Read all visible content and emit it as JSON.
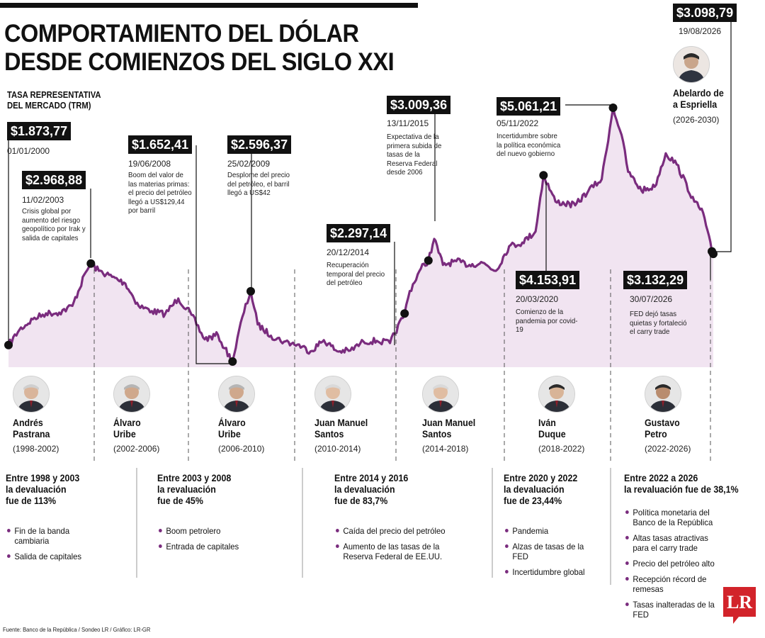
{
  "title": {
    "line1": "COMPORTAMIENTO DEL DÓLAR",
    "line2": "DESDE COMIENZOS DEL SIGLO XXI"
  },
  "subtitle": {
    "line1": "TASA REPRESENTATIVA",
    "line2": "DEL MERCADO (TRM)"
  },
  "colors": {
    "line": "#7a2c7e",
    "area": "#f1e4f1",
    "box": "#111111",
    "logo": "#d2232a"
  },
  "chart_data": {
    "type": "area",
    "title": "COMPORTAMIENTO DEL DÓLAR DESDE COMIENZOS DEL SIGLO XXI",
    "ylabel": "TASA REPRESENTATIVA DEL MERCADO (TRM)",
    "grid": false,
    "legend": "none",
    "series": [
      {
        "points": [
          [
            "2000-01-01",
            1873.77
          ],
          [
            "2000-06-01",
            2080
          ],
          [
            "2000-12-01",
            2220
          ],
          [
            "2001-06-01",
            2300
          ],
          [
            "2001-12-01",
            2310
          ],
          [
            "2002-06-01",
            2400
          ],
          [
            "2002-12-01",
            2850
          ],
          [
            "2003-02-11",
            2968.88
          ],
          [
            "2003-06-01",
            2870
          ],
          [
            "2003-12-01",
            2790
          ],
          [
            "2004-06-01",
            2700
          ],
          [
            "2004-12-01",
            2400
          ],
          [
            "2005-06-01",
            2330
          ],
          [
            "2005-12-01",
            2290
          ],
          [
            "2006-06-01",
            2500
          ],
          [
            "2006-12-01",
            2280
          ],
          [
            "2007-06-01",
            1950
          ],
          [
            "2007-12-01",
            2010
          ],
          [
            "2008-03-01",
            1830
          ],
          [
            "2008-06-19",
            1652.41
          ],
          [
            "2008-11-01",
            2250
          ],
          [
            "2009-02-25",
            2596.37
          ],
          [
            "2009-06-01",
            2150
          ],
          [
            "2009-12-01",
            2000
          ],
          [
            "2010-06-01",
            1920
          ],
          [
            "2010-12-01",
            1880
          ],
          [
            "2011-06-01",
            1790
          ],
          [
            "2011-12-01",
            1940
          ],
          [
            "2012-06-01",
            1790
          ],
          [
            "2012-12-01",
            1800
          ],
          [
            "2013-06-01",
            1920
          ],
          [
            "2013-12-01",
            1930
          ],
          [
            "2014-06-01",
            1900
          ],
          [
            "2014-12-20",
            2297.14
          ],
          [
            "2015-03-01",
            2600
          ],
          [
            "2015-08-01",
            2900
          ],
          [
            "2015-11-13",
            3009.36
          ],
          [
            "2016-02-01",
            3300
          ],
          [
            "2016-06-01",
            2950
          ],
          [
            "2016-12-01",
            3000
          ],
          [
            "2017-06-01",
            2950
          ],
          [
            "2017-12-01",
            2980
          ],
          [
            "2018-06-01",
            2870
          ],
          [
            "2018-12-01",
            3200
          ],
          [
            "2019-06-01",
            3250
          ],
          [
            "2019-12-01",
            3400
          ],
          [
            "2020-03-20",
            4153.91
          ],
          [
            "2020-09-01",
            3800
          ],
          [
            "2021-06-01",
            3750
          ],
          [
            "2021-12-01",
            3950
          ],
          [
            "2022-06-01",
            4100
          ],
          [
            "2022-11-05",
            5061.21
          ],
          [
            "2023-03-01",
            4700
          ],
          [
            "2023-06-01",
            4200
          ],
          [
            "2023-12-01",
            3950
          ],
          [
            "2024-06-01",
            4000
          ],
          [
            "2024-11-01",
            4450
          ],
          [
            "2025-04-01",
            4300
          ],
          [
            "2025-12-01",
            3800
          ],
          [
            "2026-04-01",
            3650
          ],
          [
            "2026-07-30",
            3132.29
          ],
          [
            "2026-08-19",
            3098.79
          ]
        ]
      }
    ],
    "annotations": [
      {
        "value": "$1.873,77",
        "date": "01/01/2000",
        "note": ""
      },
      {
        "value": "$2.968,88",
        "date": "11/02/2003",
        "note": "Crisis global por aumento del riesgo geopolítico por Irak y salida de capitales"
      },
      {
        "value": "$1.652,41",
        "date": "19/06/2008",
        "note": "Boom del valor de las materias primas: el precio del petróleo llegó a US$129,44 por barril"
      },
      {
        "value": "$2.596,37",
        "date": "25/02/2009",
        "note": "Desplome del precio del petróleo, el barril llegó a US$42"
      },
      {
        "value": "$2.297,14",
        "date": "20/12/2014",
        "note": "Recuperación temporal del precio del petróleo"
      },
      {
        "value": "$3.009,36",
        "date": "13/11/2015",
        "note": "Expectativa de la primera subida de tasas de la Reserva Federal desde 2006"
      },
      {
        "value": "$4.153,91",
        "date": "20/03/2020",
        "note": "Comienzo de la pandemia por covid-19"
      },
      {
        "value": "$5.061,21",
        "date": "05/11/2022",
        "note": "Incertidumbre sobre la política económica del nuevo gobierno"
      },
      {
        "value": "$3.132,29",
        "date": "30/07/2026",
        "note": "FED dejó tasas quietas y fortaleció el carry trade"
      },
      {
        "value": "$3.098,79",
        "date": "19/08/2026",
        "note": ""
      }
    ]
  },
  "presidents": [
    {
      "name1": "Andrés",
      "name2": "Pastrana",
      "term": "(1998-2002)"
    },
    {
      "name1": "Álvaro",
      "name2": "Uribe",
      "term": "(2002-2006)"
    },
    {
      "name1": "Álvaro",
      "name2": "Uribe",
      "term": "(2006-2010)"
    },
    {
      "name1": "Juan Manuel",
      "name2": "Santos",
      "term": "(2010-2014)"
    },
    {
      "name1": "Juan Manuel",
      "name2": "Santos",
      "term": "(2014-2018)"
    },
    {
      "name1": "Iván",
      "name2": "Duque",
      "term": "(2018-2022)"
    },
    {
      "name1": "Gustavo",
      "name2": "Petro",
      "term": "(2022-2026)"
    }
  ],
  "next_president": {
    "name1": "Abelardo de",
    "name2": "a Espriella",
    "term": "(2026-2030)"
  },
  "periods": [
    {
      "head1": "Entre 1998 y 2003",
      "head2": "la devaluación",
      "head3": "fue de 113%",
      "items": [
        "Fin de la banda cambiaria",
        "Salida de capitales"
      ]
    },
    {
      "head1": "Entre 2003 y 2008",
      "head2": "la revaluación",
      "head3": "fue de 45%",
      "items": [
        "Boom petrolero",
        "Entrada de capitales"
      ]
    },
    {
      "head1": "Entre 2014 y 2016",
      "head2": "la devaluación",
      "head3": "fue de 83,7%",
      "items": [
        "Caída del precio del petróleo",
        "Aumento de las tasas de la Reserva Federal de EE.UU."
      ]
    },
    {
      "head1": "Entre 2020 y 2022",
      "head2": "la devaluación",
      "head3": "fue de 23,44%",
      "items": [
        "Pandemia",
        "Alzas de tasas de la FED",
        "Incertidumbre global"
      ]
    },
    {
      "head1": "Entre 2022 a 2026",
      "head2": "la revaluación fue de 38,1%",
      "head3": "",
      "items": [
        "Política monetaria del Banco de la República",
        "Altas tasas atractivas para el carry trade",
        "Precio del petróleo alto",
        "Recepción récord de remesas",
        "Tasas inalteradas de la FED"
      ]
    }
  ],
  "source": "Fuente: Banco de la República / Sondeo LR / Gráfico: LR-GR",
  "logo": "LR"
}
